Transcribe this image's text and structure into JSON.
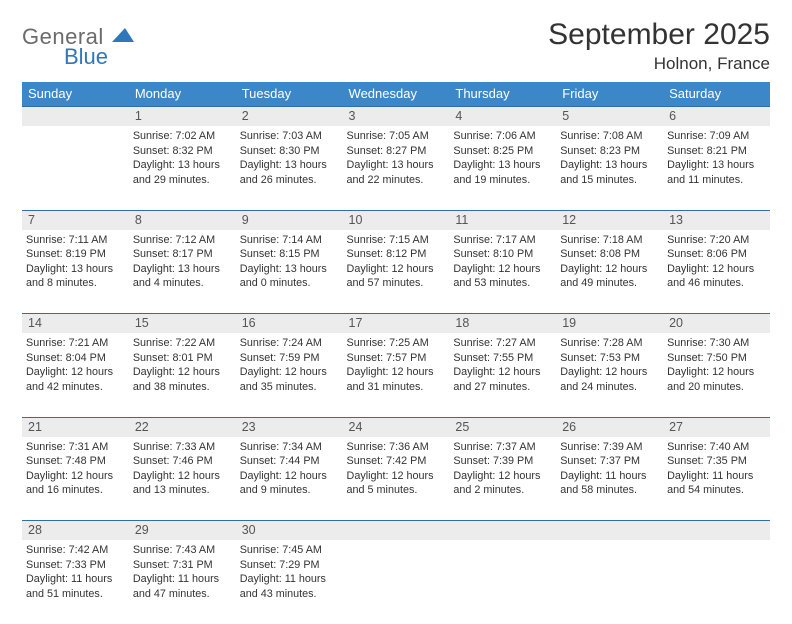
{
  "logo": {
    "general": "General",
    "blue": "Blue"
  },
  "header": {
    "month_title": "September 2025",
    "location": "Holnon, France"
  },
  "colors": {
    "header_bg": "#3c87c8",
    "header_text": "#ffffff",
    "daynum_bg": "#ececec",
    "row_border": "#2f6ea8",
    "logo_gray": "#6b6b6b",
    "logo_blue": "#2f77bb",
    "page_bg": "#ffffff"
  },
  "layout": {
    "type": "table",
    "columns": 7,
    "rows": 5,
    "fontsize_header": 13,
    "fontsize_cell": 10.8,
    "fontsize_title": 30,
    "fontsize_location": 17
  },
  "day_headers": [
    "Sunday",
    "Monday",
    "Tuesday",
    "Wednesday",
    "Thursday",
    "Friday",
    "Saturday"
  ],
  "weeks": [
    {
      "days": [
        {
          "num": "",
          "lines": [
            "",
            "",
            "",
            ""
          ]
        },
        {
          "num": "1",
          "lines": [
            "Sunrise: 7:02 AM",
            "Sunset: 8:32 PM",
            "Daylight: 13 hours",
            "and 29 minutes."
          ]
        },
        {
          "num": "2",
          "lines": [
            "Sunrise: 7:03 AM",
            "Sunset: 8:30 PM",
            "Daylight: 13 hours",
            "and 26 minutes."
          ]
        },
        {
          "num": "3",
          "lines": [
            "Sunrise: 7:05 AM",
            "Sunset: 8:27 PM",
            "Daylight: 13 hours",
            "and 22 minutes."
          ]
        },
        {
          "num": "4",
          "lines": [
            "Sunrise: 7:06 AM",
            "Sunset: 8:25 PM",
            "Daylight: 13 hours",
            "and 19 minutes."
          ]
        },
        {
          "num": "5",
          "lines": [
            "Sunrise: 7:08 AM",
            "Sunset: 8:23 PM",
            "Daylight: 13 hours",
            "and 15 minutes."
          ]
        },
        {
          "num": "6",
          "lines": [
            "Sunrise: 7:09 AM",
            "Sunset: 8:21 PM",
            "Daylight: 13 hours",
            "and 11 minutes."
          ]
        }
      ]
    },
    {
      "days": [
        {
          "num": "7",
          "lines": [
            "Sunrise: 7:11 AM",
            "Sunset: 8:19 PM",
            "Daylight: 13 hours",
            "and 8 minutes."
          ]
        },
        {
          "num": "8",
          "lines": [
            "Sunrise: 7:12 AM",
            "Sunset: 8:17 PM",
            "Daylight: 13 hours",
            "and 4 minutes."
          ]
        },
        {
          "num": "9",
          "lines": [
            "Sunrise: 7:14 AM",
            "Sunset: 8:15 PM",
            "Daylight: 13 hours",
            "and 0 minutes."
          ]
        },
        {
          "num": "10",
          "lines": [
            "Sunrise: 7:15 AM",
            "Sunset: 8:12 PM",
            "Daylight: 12 hours",
            "and 57 minutes."
          ]
        },
        {
          "num": "11",
          "lines": [
            "Sunrise: 7:17 AM",
            "Sunset: 8:10 PM",
            "Daylight: 12 hours",
            "and 53 minutes."
          ]
        },
        {
          "num": "12",
          "lines": [
            "Sunrise: 7:18 AM",
            "Sunset: 8:08 PM",
            "Daylight: 12 hours",
            "and 49 minutes."
          ]
        },
        {
          "num": "13",
          "lines": [
            "Sunrise: 7:20 AM",
            "Sunset: 8:06 PM",
            "Daylight: 12 hours",
            "and 46 minutes."
          ]
        }
      ]
    },
    {
      "days": [
        {
          "num": "14",
          "lines": [
            "Sunrise: 7:21 AM",
            "Sunset: 8:04 PM",
            "Daylight: 12 hours",
            "and 42 minutes."
          ]
        },
        {
          "num": "15",
          "lines": [
            "Sunrise: 7:22 AM",
            "Sunset: 8:01 PM",
            "Daylight: 12 hours",
            "and 38 minutes."
          ]
        },
        {
          "num": "16",
          "lines": [
            "Sunrise: 7:24 AM",
            "Sunset: 7:59 PM",
            "Daylight: 12 hours",
            "and 35 minutes."
          ]
        },
        {
          "num": "17",
          "lines": [
            "Sunrise: 7:25 AM",
            "Sunset: 7:57 PM",
            "Daylight: 12 hours",
            "and 31 minutes."
          ]
        },
        {
          "num": "18",
          "lines": [
            "Sunrise: 7:27 AM",
            "Sunset: 7:55 PM",
            "Daylight: 12 hours",
            "and 27 minutes."
          ]
        },
        {
          "num": "19",
          "lines": [
            "Sunrise: 7:28 AM",
            "Sunset: 7:53 PM",
            "Daylight: 12 hours",
            "and 24 minutes."
          ]
        },
        {
          "num": "20",
          "lines": [
            "Sunrise: 7:30 AM",
            "Sunset: 7:50 PM",
            "Daylight: 12 hours",
            "and 20 minutes."
          ]
        }
      ]
    },
    {
      "days": [
        {
          "num": "21",
          "lines": [
            "Sunrise: 7:31 AM",
            "Sunset: 7:48 PM",
            "Daylight: 12 hours",
            "and 16 minutes."
          ]
        },
        {
          "num": "22",
          "lines": [
            "Sunrise: 7:33 AM",
            "Sunset: 7:46 PM",
            "Daylight: 12 hours",
            "and 13 minutes."
          ]
        },
        {
          "num": "23",
          "lines": [
            "Sunrise: 7:34 AM",
            "Sunset: 7:44 PM",
            "Daylight: 12 hours",
            "and 9 minutes."
          ]
        },
        {
          "num": "24",
          "lines": [
            "Sunrise: 7:36 AM",
            "Sunset: 7:42 PM",
            "Daylight: 12 hours",
            "and 5 minutes."
          ]
        },
        {
          "num": "25",
          "lines": [
            "Sunrise: 7:37 AM",
            "Sunset: 7:39 PM",
            "Daylight: 12 hours",
            "and 2 minutes."
          ]
        },
        {
          "num": "26",
          "lines": [
            "Sunrise: 7:39 AM",
            "Sunset: 7:37 PM",
            "Daylight: 11 hours",
            "and 58 minutes."
          ]
        },
        {
          "num": "27",
          "lines": [
            "Sunrise: 7:40 AM",
            "Sunset: 7:35 PM",
            "Daylight: 11 hours",
            "and 54 minutes."
          ]
        }
      ]
    },
    {
      "days": [
        {
          "num": "28",
          "lines": [
            "Sunrise: 7:42 AM",
            "Sunset: 7:33 PM",
            "Daylight: 11 hours",
            "and 51 minutes."
          ]
        },
        {
          "num": "29",
          "lines": [
            "Sunrise: 7:43 AM",
            "Sunset: 7:31 PM",
            "Daylight: 11 hours",
            "and 47 minutes."
          ]
        },
        {
          "num": "30",
          "lines": [
            "Sunrise: 7:45 AM",
            "Sunset: 7:29 PM",
            "Daylight: 11 hours",
            "and 43 minutes."
          ]
        },
        {
          "num": "",
          "lines": [
            "",
            "",
            "",
            ""
          ]
        },
        {
          "num": "",
          "lines": [
            "",
            "",
            "",
            ""
          ]
        },
        {
          "num": "",
          "lines": [
            "",
            "",
            "",
            ""
          ]
        },
        {
          "num": "",
          "lines": [
            "",
            "",
            "",
            ""
          ]
        }
      ]
    }
  ]
}
